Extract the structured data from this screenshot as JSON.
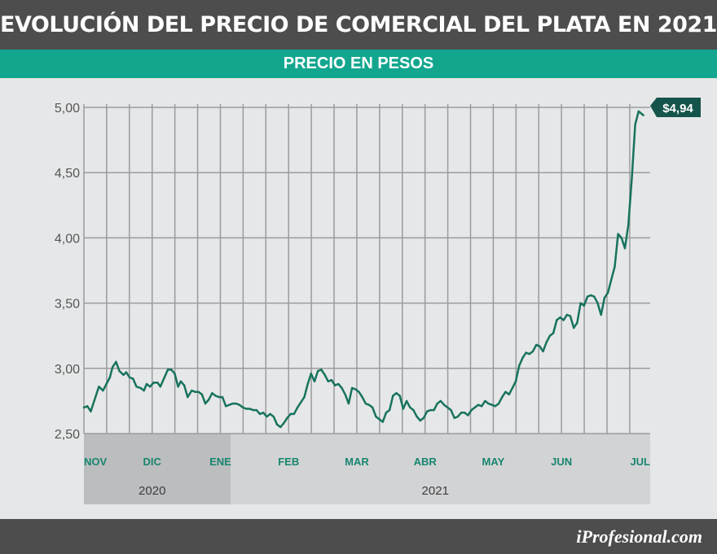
{
  "title": "EVOLUCIÓN DEL PRECIO DE COMERCIAL DEL PLATA EN 2021",
  "subtitle": "PRECIO EN PESOS",
  "brand": "iProfesional.com",
  "colors": {
    "line": "#17735e",
    "accent": "#13a68f",
    "dark_bar": "#4d4d4d",
    "label_bg": "#15544a"
  },
  "chart_data": {
    "type": "line",
    "title": "EVOLUCIÓN DEL PRECIO DE COMERCIAL DEL PLATA EN 2021",
    "subtitle": "PRECIO EN PESOS",
    "ylabel": "",
    "xlabel": "",
    "ylim": [
      2.5,
      5.0
    ],
    "yticks": [
      "5,00",
      "4,50",
      "4,00",
      "3,50",
      "3,00",
      "2,50"
    ],
    "ytick_values": [
      5.0,
      4.5,
      4.0,
      3.5,
      3.0,
      2.5
    ],
    "xlim": [
      0,
      8.3
    ],
    "months": [
      "NOV",
      "DIC",
      "ENE",
      "FEB",
      "MAR",
      "ABR",
      "MAY",
      "JUN",
      "JUL"
    ],
    "month_positions": [
      0,
      1,
      2,
      3,
      4,
      5,
      6,
      7,
      8.3
    ],
    "years": [
      {
        "label": "2020",
        "from": 0,
        "to": 2
      },
      {
        "label": "2021",
        "from": 2,
        "to": 8.3
      }
    ],
    "grid": true,
    "last_value_label": "$4,94",
    "series": [
      {
        "values": [
          [
            0.0,
            2.7
          ],
          [
            0.05,
            2.71
          ],
          [
            0.1,
            2.67
          ],
          [
            0.15,
            2.75
          ],
          [
            0.22,
            2.86
          ],
          [
            0.28,
            2.83
          ],
          [
            0.33,
            2.88
          ],
          [
            0.38,
            2.93
          ],
          [
            0.42,
            3.01
          ],
          [
            0.47,
            3.05
          ],
          [
            0.52,
            2.98
          ],
          [
            0.58,
            2.95
          ],
          [
            0.62,
            2.97
          ],
          [
            0.67,
            2.93
          ],
          [
            0.72,
            2.92
          ],
          [
            0.77,
            2.86
          ],
          [
            0.83,
            2.85
          ],
          [
            0.88,
            2.83
          ],
          [
            0.92,
            2.88
          ],
          [
            0.97,
            2.86
          ],
          [
            1.02,
            2.89
          ],
          [
            1.08,
            2.89
          ],
          [
            1.12,
            2.86
          ],
          [
            1.18,
            2.93
          ],
          [
            1.23,
            2.99
          ],
          [
            1.28,
            2.99
          ],
          [
            1.33,
            2.96
          ],
          [
            1.38,
            2.86
          ],
          [
            1.42,
            2.9
          ],
          [
            1.47,
            2.87
          ],
          [
            1.52,
            2.78
          ],
          [
            1.58,
            2.83
          ],
          [
            1.63,
            2.82
          ],
          [
            1.68,
            2.82
          ],
          [
            1.73,
            2.8
          ],
          [
            1.78,
            2.73
          ],
          [
            1.83,
            2.76
          ],
          [
            1.88,
            2.81
          ],
          [
            1.93,
            2.79
          ],
          [
            1.98,
            2.78
          ],
          [
            2.03,
            2.78
          ],
          [
            2.08,
            2.71
          ],
          [
            2.13,
            2.72
          ],
          [
            2.18,
            2.73
          ],
          [
            2.23,
            2.73
          ],
          [
            2.28,
            2.72
          ],
          [
            2.33,
            2.7
          ],
          [
            2.38,
            2.69
          ],
          [
            2.43,
            2.69
          ],
          [
            2.48,
            2.68
          ],
          [
            2.53,
            2.68
          ],
          [
            2.58,
            2.65
          ],
          [
            2.63,
            2.66
          ],
          [
            2.68,
            2.63
          ],
          [
            2.73,
            2.65
          ],
          [
            2.78,
            2.63
          ],
          [
            2.83,
            2.57
          ],
          [
            2.88,
            2.55
          ],
          [
            2.93,
            2.58
          ],
          [
            2.98,
            2.62
          ],
          [
            3.03,
            2.65
          ],
          [
            3.08,
            2.65
          ],
          [
            3.13,
            2.7
          ],
          [
            3.18,
            2.74
          ],
          [
            3.23,
            2.78
          ],
          [
            3.28,
            2.88
          ],
          [
            3.33,
            2.96
          ],
          [
            3.38,
            2.9
          ],
          [
            3.43,
            2.98
          ],
          [
            3.48,
            2.99
          ],
          [
            3.53,
            2.95
          ],
          [
            3.58,
            2.9
          ],
          [
            3.63,
            2.91
          ],
          [
            3.68,
            2.87
          ],
          [
            3.73,
            2.88
          ],
          [
            3.78,
            2.85
          ],
          [
            3.83,
            2.8
          ],
          [
            3.88,
            2.73
          ],
          [
            3.93,
            2.85
          ],
          [
            3.98,
            2.84
          ],
          [
            4.03,
            2.82
          ],
          [
            4.08,
            2.78
          ],
          [
            4.13,
            2.73
          ],
          [
            4.18,
            2.72
          ],
          [
            4.23,
            2.7
          ],
          [
            4.28,
            2.63
          ],
          [
            4.33,
            2.61
          ],
          [
            4.38,
            2.59
          ],
          [
            4.43,
            2.66
          ],
          [
            4.48,
            2.68
          ],
          [
            4.53,
            2.79
          ],
          [
            4.58,
            2.81
          ],
          [
            4.63,
            2.79
          ],
          [
            4.68,
            2.69
          ],
          [
            4.73,
            2.75
          ],
          [
            4.78,
            2.7
          ],
          [
            4.83,
            2.68
          ],
          [
            4.88,
            2.63
          ],
          [
            4.93,
            2.6
          ],
          [
            4.98,
            2.62
          ],
          [
            5.03,
            2.67
          ],
          [
            5.08,
            2.68
          ],
          [
            5.13,
            2.68
          ],
          [
            5.18,
            2.73
          ],
          [
            5.23,
            2.75
          ],
          [
            5.28,
            2.72
          ],
          [
            5.33,
            2.7
          ],
          [
            5.38,
            2.68
          ],
          [
            5.43,
            2.62
          ],
          [
            5.48,
            2.63
          ],
          [
            5.53,
            2.66
          ],
          [
            5.58,
            2.66
          ],
          [
            5.63,
            2.64
          ],
          [
            5.68,
            2.68
          ],
          [
            5.73,
            2.7
          ],
          [
            5.78,
            2.72
          ],
          [
            5.83,
            2.71
          ],
          [
            5.88,
            2.75
          ],
          [
            5.93,
            2.73
          ],
          [
            5.98,
            2.72
          ],
          [
            6.03,
            2.71
          ],
          [
            6.08,
            2.73
          ],
          [
            6.13,
            2.78
          ],
          [
            6.18,
            2.82
          ],
          [
            6.23,
            2.8
          ],
          [
            6.28,
            2.85
          ],
          [
            6.33,
            2.9
          ],
          [
            6.38,
            3.02
          ],
          [
            6.43,
            3.08
          ],
          [
            6.48,
            3.12
          ],
          [
            6.53,
            3.11
          ],
          [
            6.58,
            3.13
          ],
          [
            6.63,
            3.18
          ],
          [
            6.68,
            3.17
          ],
          [
            6.73,
            3.13
          ],
          [
            6.78,
            3.2
          ],
          [
            6.83,
            3.25
          ],
          [
            6.88,
            3.27
          ],
          [
            6.93,
            3.37
          ],
          [
            6.98,
            3.39
          ],
          [
            7.03,
            3.37
          ],
          [
            7.08,
            3.41
          ],
          [
            7.13,
            3.4
          ],
          [
            7.18,
            3.31
          ],
          [
            7.23,
            3.35
          ],
          [
            7.28,
            3.5
          ],
          [
            7.33,
            3.48
          ],
          [
            7.38,
            3.55
          ],
          [
            7.43,
            3.56
          ],
          [
            7.48,
            3.55
          ],
          [
            7.53,
            3.5
          ],
          [
            7.58,
            3.41
          ],
          [
            7.63,
            3.54
          ],
          [
            7.68,
            3.58
          ],
          [
            7.73,
            3.68
          ],
          [
            7.78,
            3.78
          ],
          [
            7.83,
            4.03
          ],
          [
            7.88,
            4.0
          ],
          [
            7.93,
            3.92
          ],
          [
            7.98,
            4.1
          ],
          [
            8.03,
            4.45
          ],
          [
            8.08,
            4.87
          ],
          [
            8.13,
            4.97
          ],
          [
            8.2,
            4.94
          ]
        ]
      }
    ]
  }
}
